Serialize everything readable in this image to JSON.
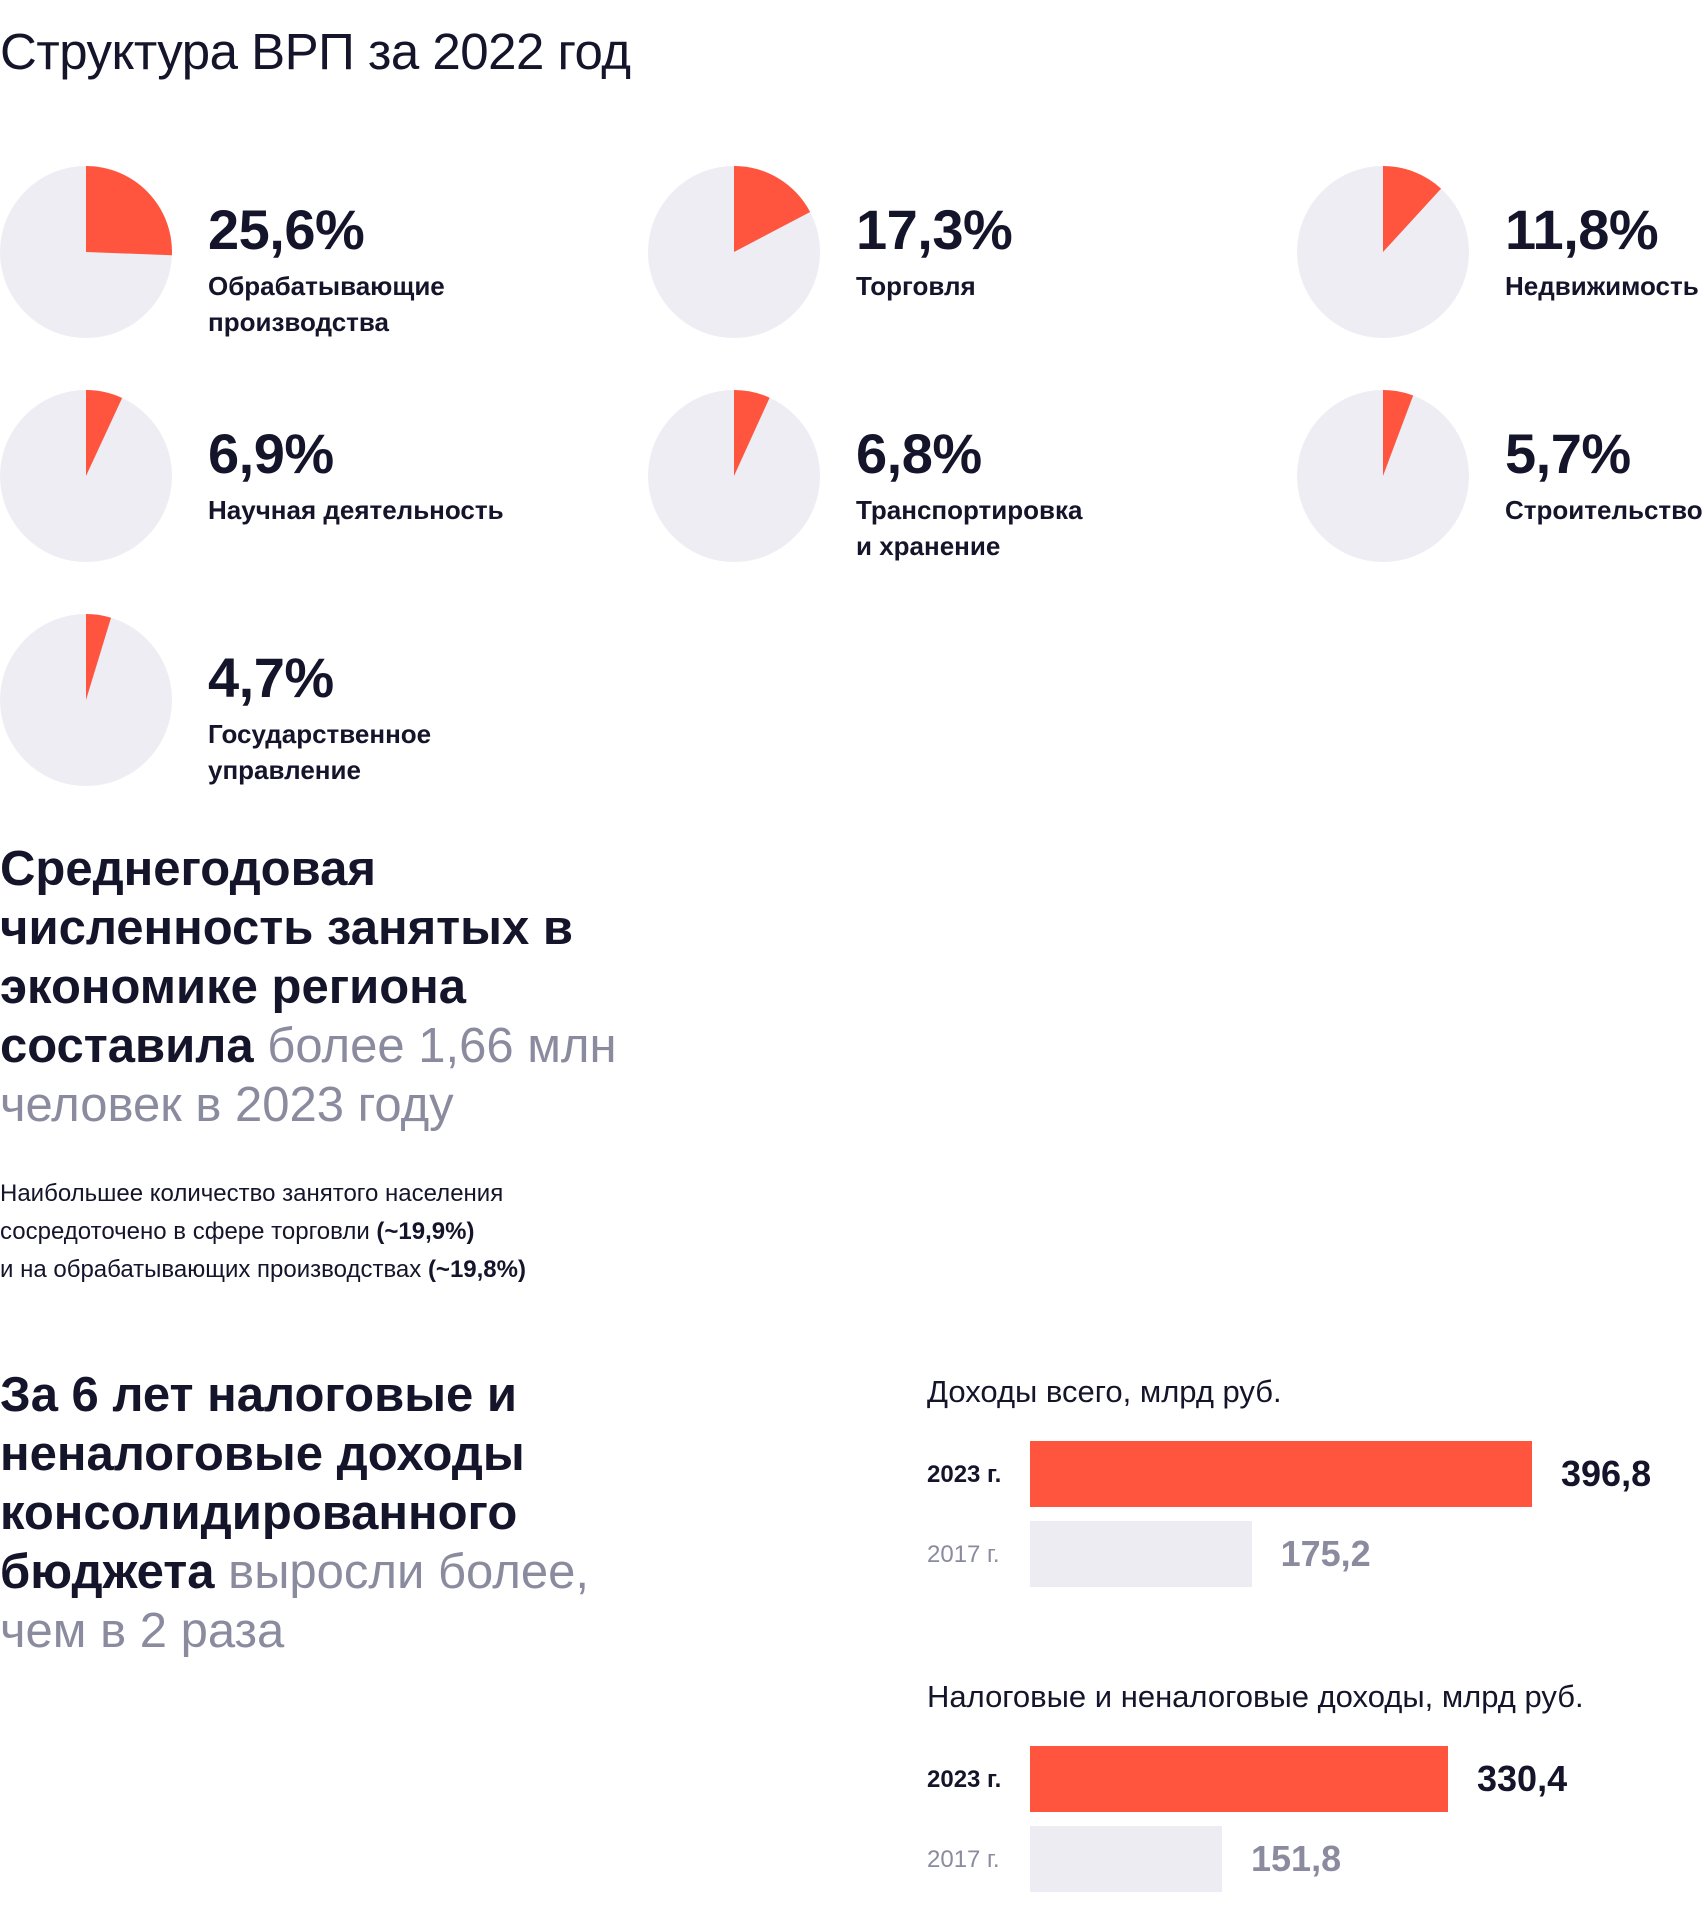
{
  "page": {
    "title": "Структура ВРП за 2022 год"
  },
  "colors": {
    "accent": "#ff553e",
    "pie_base": "#ededf3",
    "bar_prev": "#ececf2",
    "muted_text": "#8b8b9f",
    "text": "#14142b"
  },
  "chart_data": [
    {
      "type": "pie",
      "title": "Структура ВРП за 2022 год",
      "slices": [
        {
          "value": 25.6,
          "pct_label": "25,6%",
          "label_lines": [
            "Обрабатывающие",
            "производства"
          ]
        },
        {
          "value": 17.3,
          "pct_label": "17,3%",
          "label_lines": [
            "Торговля"
          ]
        },
        {
          "value": 11.8,
          "pct_label": "11,8%",
          "label_lines": [
            "Недвижимость"
          ]
        },
        {
          "value": 6.9,
          "pct_label": "6,9%",
          "label_lines": [
            "Научная деятельность"
          ]
        },
        {
          "value": 6.8,
          "pct_label": "6,8%",
          "label_lines": [
            "Транспортировка",
            "и хранение"
          ]
        },
        {
          "value": 5.7,
          "pct_label": "5,7%",
          "label_lines": [
            "Строительство"
          ]
        },
        {
          "value": 4.7,
          "pct_label": "4,7%",
          "label_lines": [
            "Государственное",
            "управление"
          ]
        }
      ]
    },
    {
      "type": "bar",
      "title": "Доходы всего, млрд руб.",
      "categories": [
        "2023 г.",
        "2017 г."
      ],
      "values": [
        396.8,
        175.2
      ],
      "value_labels": [
        "396,8",
        "175,2"
      ]
    },
    {
      "type": "bar",
      "title": "Налоговые и неналоговые доходы, млрд руб.",
      "categories": [
        "2023 г.",
        "2017 г."
      ],
      "values": [
        330.4,
        151.8
      ],
      "value_labels": [
        "330,4",
        "151,8"
      ]
    }
  ],
  "employment": {
    "lines_bold": [
      "Среднегодовая",
      "численность занятых в",
      "экономике региона",
      "составила"
    ],
    "highlight_1": "более 1,66 млн",
    "highlight_2": "человек в 2023 году",
    "note_line1": "Наибольшее количество занятого населения",
    "note_line2": "сосредоточено в сфере торговли",
    "note_value1": "(~19,9%)",
    "note_line3": "и на обрабатывающих производствах",
    "note_value2": "(~19,8%)"
  },
  "budget": {
    "lines_bold": [
      "За 6 лет налоговые и",
      "неналоговые доходы",
      "консолидированного",
      "бюджета"
    ],
    "highlight_1": "выросли более,",
    "highlight_2": "чем в 2 раза"
  }
}
